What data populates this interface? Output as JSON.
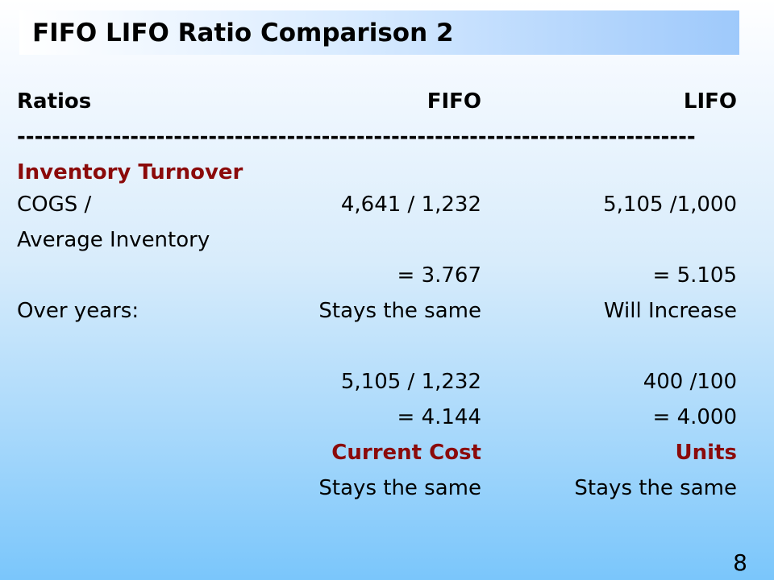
{
  "slide": {
    "title": "FIFO LIFO Ratio Comparison 2",
    "page_number": "8"
  },
  "header": {
    "col1": "Ratios",
    "col2": "FIFO",
    "col3": "LIFO",
    "divider": "------------------------------------------------------------------------------"
  },
  "rows": [
    {
      "c1": "Inventory Turnover",
      "c2": "",
      "c3": ""
    },
    {
      "c1": "COGS /",
      "c2": "4,641 / 1,232",
      "c3": "5,105 /1,000"
    },
    {
      "c1": "Average Inventory",
      "c2": "",
      "c3": ""
    },
    {
      "c1": "",
      "c2": "= 3.767",
      "c3": "= 5.105"
    },
    {
      "c1": "Over years:",
      "c2": "Stays the same",
      "c3": "Will Increase"
    },
    {
      "c1": "",
      "c2": "",
      "c3": ""
    },
    {
      "c1": "",
      "c2": "5,105 / 1,232",
      "c3": "400 /100"
    },
    {
      "c1": "",
      "c2": "= 4.144",
      "c3": "= 4.000"
    },
    {
      "c1": "",
      "c2": "Current Cost",
      "c3": "Units"
    },
    {
      "c1": "",
      "c2": "Stays the same",
      "c3": "Stays the same"
    }
  ]
}
